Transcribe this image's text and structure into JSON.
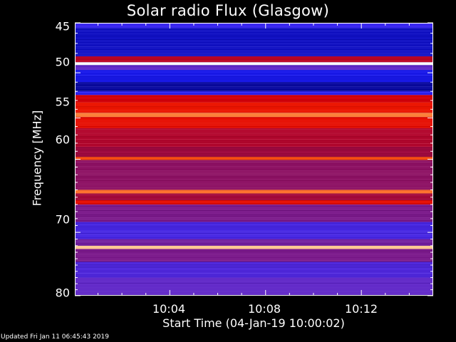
{
  "chart_data": {
    "type": "heatmap",
    "title": "Solar radio Flux (Glasgow)",
    "xlabel": "Start Time (04-Jan-19 10:00:02)",
    "ylabel": "Frequency [MHz]",
    "x_tick_labels": [
      "10:04",
      "10:08",
      "10:12"
    ],
    "y_ticks": [
      45,
      50,
      55,
      60,
      70,
      80
    ],
    "y_tick_labels": [
      "45",
      "50",
      "55",
      "60",
      "70",
      "80"
    ],
    "ylim": [
      45,
      80
    ],
    "y_scale": "log",
    "x_range": [
      "10:00:02",
      "10:15:00"
    ],
    "colormap": [
      "#00007a",
      "#1c1cff",
      "#5a2ad6",
      "#9a0a46",
      "#e00000",
      "#ff3a00",
      "#ffb060",
      "#ffffff"
    ],
    "frequency_bands": [
      {
        "freq_from": 45.0,
        "freq_to": 45.5,
        "intensity": 0.2
      },
      {
        "freq_from": 45.5,
        "freq_to": 48.3,
        "intensity": 0.08
      },
      {
        "freq_from": 48.3,
        "freq_to": 48.9,
        "intensity": 0.5
      },
      {
        "freq_from": 48.9,
        "freq_to": 49.2,
        "intensity": 1.0
      },
      {
        "freq_from": 49.2,
        "freq_to": 49.7,
        "intensity": 0.3
      },
      {
        "freq_from": 49.7,
        "freq_to": 51.0,
        "intensity": 0.12
      },
      {
        "freq_from": 51.0,
        "freq_to": 52.0,
        "intensity": 0.04
      },
      {
        "freq_from": 52.0,
        "freq_to": 52.4,
        "intensity": 0.18
      },
      {
        "freq_from": 52.4,
        "freq_to": 53.2,
        "intensity": 0.55
      },
      {
        "freq_from": 53.2,
        "freq_to": 54.4,
        "intensity": 0.62
      },
      {
        "freq_from": 54.4,
        "freq_to": 54.9,
        "intensity": 0.8
      },
      {
        "freq_from": 54.9,
        "freq_to": 56.2,
        "intensity": 0.6
      },
      {
        "freq_from": 56.2,
        "freq_to": 58.5,
        "intensity": 0.48
      },
      {
        "freq_from": 58.5,
        "freq_to": 59.7,
        "intensity": 0.44
      },
      {
        "freq_from": 59.7,
        "freq_to": 60.1,
        "intensity": 0.74
      },
      {
        "freq_from": 60.1,
        "freq_to": 64.0,
        "intensity": 0.4
      },
      {
        "freq_from": 64.0,
        "freq_to": 64.5,
        "intensity": 0.78
      },
      {
        "freq_from": 64.5,
        "freq_to": 65.4,
        "intensity": 0.45
      },
      {
        "freq_from": 65.4,
        "freq_to": 66.0,
        "intensity": 0.6
      },
      {
        "freq_from": 66.0,
        "freq_to": 68.5,
        "intensity": 0.36
      },
      {
        "freq_from": 68.5,
        "freq_to": 71.0,
        "intensity": 0.24
      },
      {
        "freq_from": 71.0,
        "freq_to": 72.0,
        "intensity": 0.34
      },
      {
        "freq_from": 72.0,
        "freq_to": 72.5,
        "intensity": 0.9
      },
      {
        "freq_from": 72.5,
        "freq_to": 74.5,
        "intensity": 0.36
      },
      {
        "freq_from": 74.5,
        "freq_to": 77.0,
        "intensity": 0.26
      },
      {
        "freq_from": 77.0,
        "freq_to": 80.0,
        "intensity": 0.3
      }
    ]
  },
  "footer": {
    "updated_text": "Updated Fri Jan 11 06:45:43 2019"
  }
}
